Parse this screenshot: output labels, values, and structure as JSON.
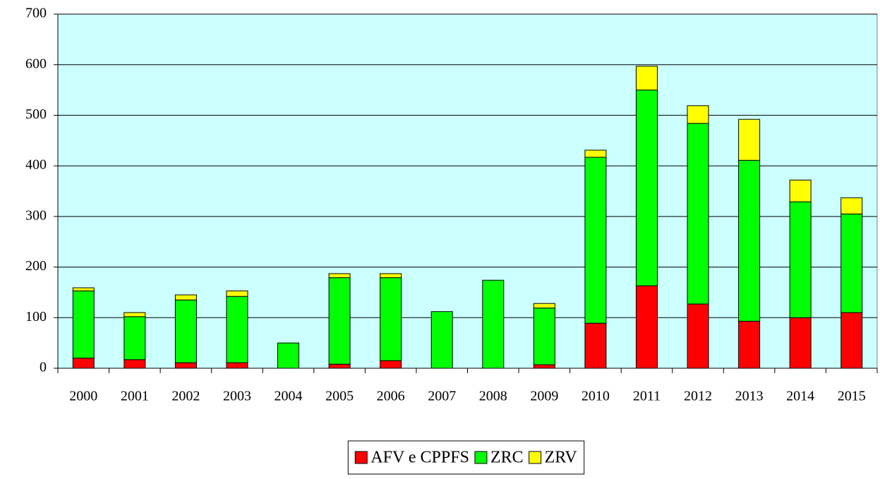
{
  "chart_data": {
    "type": "bar",
    "stacked": true,
    "categories": [
      "2000",
      "2001",
      "2002",
      "2003",
      "2004",
      "2005",
      "2006",
      "2007",
      "2008",
      "2009",
      "2010",
      "2011",
      "2012",
      "2013",
      "2014",
      "2015"
    ],
    "series": [
      {
        "name": "AFV e CPPFS",
        "color": "#ff0000",
        "values": [
          20,
          17,
          11,
          11,
          0,
          8,
          15,
          0,
          0,
          7,
          89,
          163,
          127,
          93,
          100,
          110
        ]
      },
      {
        "name": "ZRC",
        "color": "#00ff00",
        "values": [
          133,
          85,
          124,
          131,
          50,
          171,
          164,
          112,
          174,
          112,
          328,
          387,
          357,
          318,
          229,
          195
        ]
      },
      {
        "name": "ZRV",
        "color": "#ffff00",
        "values": [
          6,
          8,
          10,
          11,
          0,
          8,
          8,
          0,
          0,
          9,
          14,
          47,
          35,
          81,
          43,
          32
        ]
      }
    ],
    "ylim": [
      0,
      700
    ],
    "yticks": [
      0,
      100,
      200,
      300,
      400,
      500,
      600,
      700
    ],
    "grid": true,
    "plot_background": "#ccffff",
    "legend": "bottom"
  }
}
